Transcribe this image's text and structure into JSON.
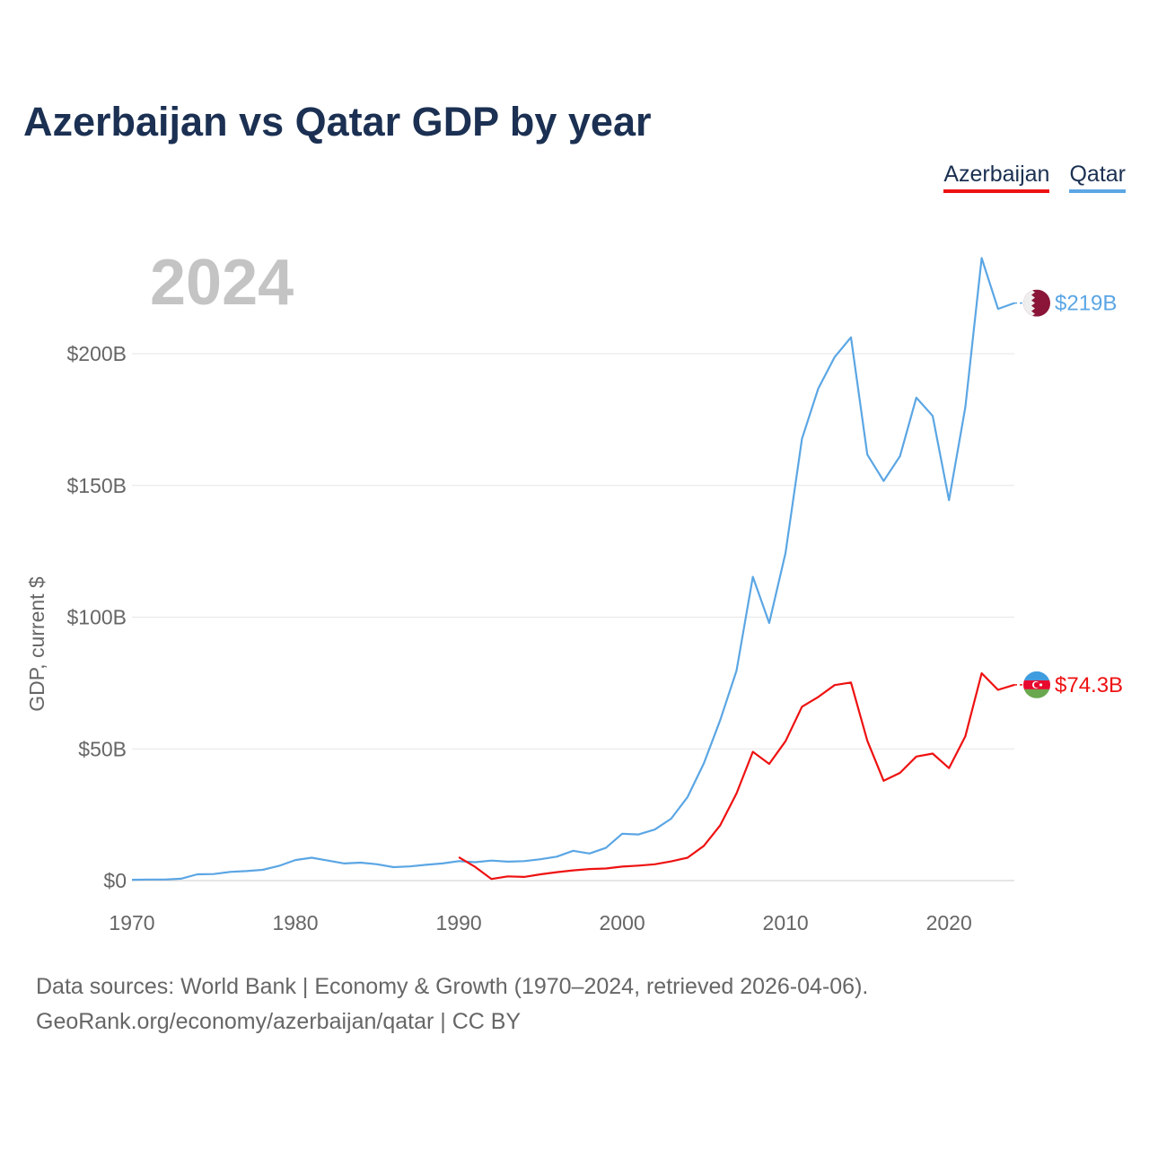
{
  "chart_data": {
    "type": "line",
    "title": "Azerbaijan vs Qatar GDP by year",
    "year_watermark": "2024",
    "ylabel": "GDP, current $",
    "xlabel": "",
    "xlim": [
      1970,
      2024
    ],
    "ylim": [
      0,
      200
    ],
    "x_ticks": [
      1970,
      1980,
      1990,
      2000,
      2010,
      2020
    ],
    "y_ticks": [
      {
        "value": 0,
        "label": "$0"
      },
      {
        "value": 50,
        "label": "$50B"
      },
      {
        "value": 100,
        "label": "$100B"
      },
      {
        "value": 150,
        "label": "$150B"
      },
      {
        "value": 200,
        "label": "$200B"
      }
    ],
    "grid": true,
    "legend_position": "top-right",
    "series": [
      {
        "name": "Azerbaijan",
        "color": "#ee1111",
        "flag_icon": "azerbaijan-flag-icon",
        "end_label": "$74.3B",
        "x": [
          1990,
          1991,
          1992,
          1993,
          1994,
          1995,
          1996,
          1997,
          1998,
          1999,
          2000,
          2001,
          2002,
          2003,
          2004,
          2005,
          2006,
          2007,
          2008,
          2009,
          2010,
          2011,
          2012,
          2013,
          2014,
          2015,
          2016,
          2017,
          2018,
          2019,
          2020,
          2021,
          2022,
          2023,
          2024
        ],
        "values": [
          8.9,
          5.2,
          0.6,
          1.6,
          1.4,
          2.4,
          3.2,
          3.9,
          4.4,
          4.6,
          5.3,
          5.7,
          6.2,
          7.3,
          8.7,
          13.2,
          21.0,
          33.1,
          48.9,
          44.3,
          52.9,
          66.0,
          69.7,
          74.2,
          75.2,
          53.1,
          37.9,
          40.9,
          47.1,
          48.2,
          42.7,
          54.8,
          78.7,
          72.4,
          74.3
        ]
      },
      {
        "name": "Qatar",
        "color": "#5ba6e4",
        "flag_icon": "qatar-flag-icon",
        "end_label": "$219B",
        "x": [
          1970,
          1971,
          1972,
          1973,
          1974,
          1975,
          1976,
          1977,
          1978,
          1979,
          1980,
          1981,
          1982,
          1983,
          1984,
          1985,
          1986,
          1987,
          1988,
          1989,
          1990,
          1991,
          1992,
          1993,
          1994,
          1995,
          1996,
          1997,
          1998,
          1999,
          2000,
          2001,
          2002,
          2003,
          2004,
          2005,
          2006,
          2007,
          2008,
          2009,
          2010,
          2011,
          2012,
          2013,
          2014,
          2015,
          2016,
          2017,
          2018,
          2019,
          2020,
          2021,
          2022,
          2023,
          2024
        ],
        "values": [
          0.3,
          0.4,
          0.4,
          0.7,
          2.4,
          2.5,
          3.3,
          3.6,
          4.1,
          5.6,
          7.8,
          8.7,
          7.6,
          6.5,
          6.8,
          6.2,
          5.1,
          5.4,
          6.0,
          6.5,
          7.4,
          7.0,
          7.6,
          7.2,
          7.4,
          8.1,
          9.1,
          11.3,
          10.3,
          12.4,
          17.8,
          17.5,
          19.4,
          23.5,
          31.7,
          44.5,
          60.9,
          79.7,
          115.3,
          97.8,
          124.4,
          167.7,
          186.8,
          198.7,
          206.2,
          161.7,
          151.7,
          161.1,
          183.3,
          176.4,
          144.4,
          179.7,
          236.3,
          217.0,
          219.2
        ]
      }
    ]
  },
  "footer": {
    "line1": "Data sources: World Bank | Economy & Growth (1970–2024, retrieved 2026-04-06).",
    "line2": "GeoRank.org/economy/azerbaijan/qatar | CC BY"
  }
}
